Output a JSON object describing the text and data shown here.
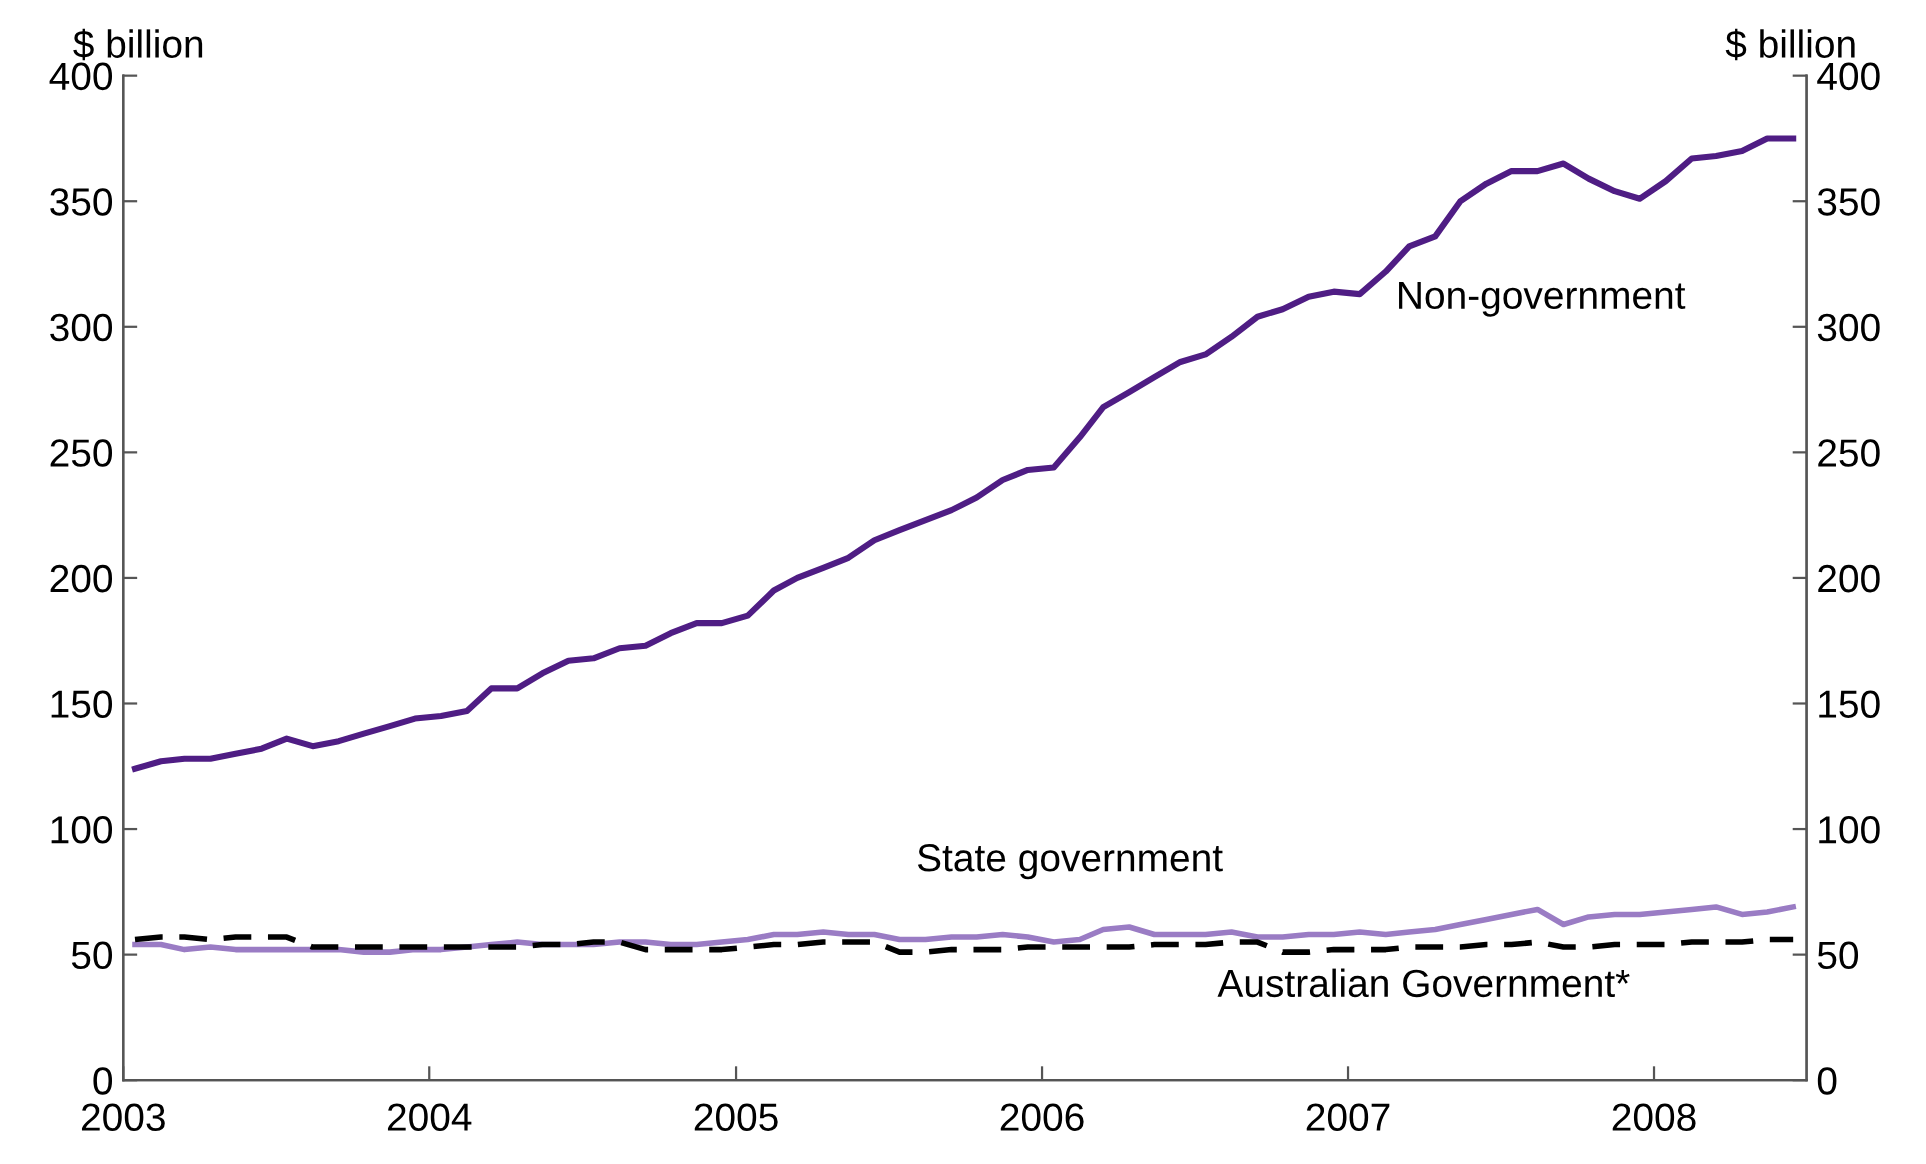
{
  "chart_data": {
    "type": "line",
    "ylabel": "$ billion",
    "y2label": "$ billion",
    "xlim": [
      "2003-01-01",
      "2008-07-01"
    ],
    "xticks": [
      "2003",
      "2004",
      "2005",
      "2006",
      "2007",
      "2008"
    ],
    "x": [
      "2003-01-15",
      "2003-02-15",
      "2003-03-15",
      "2003-04-15",
      "2003-05-15",
      "2003-06-15",
      "2003-07-15",
      "2003-08-15",
      "2003-09-15",
      "2003-10-15",
      "2003-11-15",
      "2003-12-15",
      "2004-01-15",
      "2004-02-15",
      "2004-03-15",
      "2004-04-15",
      "2004-05-15",
      "2004-06-15",
      "2004-07-15",
      "2004-08-15",
      "2004-09-15",
      "2004-10-15",
      "2004-11-15",
      "2004-12-15",
      "2005-01-15",
      "2005-02-15",
      "2005-03-15",
      "2005-04-15",
      "2005-05-15",
      "2005-06-15",
      "2005-07-15",
      "2005-08-15",
      "2005-09-15",
      "2005-10-15",
      "2005-11-15",
      "2005-12-15",
      "2006-01-15",
      "2006-02-15",
      "2006-03-15",
      "2006-04-15",
      "2006-05-15",
      "2006-06-15",
      "2006-07-15",
      "2006-08-15",
      "2006-09-15",
      "2006-10-15",
      "2006-11-15",
      "2006-12-15",
      "2007-01-15",
      "2007-02-15",
      "2007-03-15",
      "2007-04-15",
      "2007-05-15",
      "2007-06-15",
      "2007-07-15",
      "2007-08-15",
      "2007-09-15",
      "2007-10-15",
      "2007-11-15",
      "2007-12-15",
      "2008-01-15",
      "2008-02-15",
      "2008-03-15",
      "2008-04-15",
      "2008-05-15",
      "2008-06-15"
    ],
    "ylim": [
      0,
      400
    ],
    "yticks": [
      0,
      50,
      100,
      150,
      200,
      250,
      300,
      350,
      400
    ],
    "y2lim": [
      0,
      400
    ],
    "y2ticks": [
      0,
      50,
      100,
      150,
      200,
      250,
      300,
      350,
      400
    ],
    "grid": false,
    "legend": false,
    "series": [
      {
        "name": "Non-government",
        "color": "#4f1d84",
        "line_style": "solid",
        "values": [
          124,
          127,
          128,
          128,
          130,
          132,
          136,
          133,
          135,
          138,
          141,
          144,
          145,
          147,
          156,
          156,
          162,
          167,
          168,
          172,
          173,
          178,
          182,
          182,
          185,
          195,
          200,
          204,
          208,
          215,
          219,
          223,
          227,
          232,
          239,
          243,
          244,
          256,
          268,
          274,
          280,
          286,
          289,
          296,
          304,
          307,
          312,
          314,
          313,
          322,
          332,
          336,
          350,
          357,
          362,
          362,
          365,
          359,
          354,
          351,
          358,
          367,
          368,
          370,
          375,
          375
        ]
      },
      {
        "name": "State government",
        "color": "#9a7cc4",
        "line_style": "solid",
        "values": [
          54,
          54,
          52,
          53,
          52,
          52,
          52,
          52,
          52,
          51,
          51,
          52,
          52,
          53,
          54,
          55,
          54,
          54,
          54,
          55,
          55,
          54,
          54,
          55,
          56,
          58,
          58,
          59,
          58,
          58,
          56,
          56,
          57,
          57,
          58,
          57,
          55,
          56,
          60,
          61,
          58,
          58,
          58,
          59,
          57,
          57,
          58,
          58,
          59,
          58,
          59,
          60,
          62,
          64,
          66,
          68,
          62,
          65,
          66,
          66,
          67,
          68,
          69,
          66,
          67,
          69
        ]
      },
      {
        "name": "Australian Government*",
        "color": "#000000",
        "line_style": "dashed",
        "values": [
          56,
          57,
          57,
          56,
          57,
          57,
          57,
          53,
          53,
          53,
          53,
          53,
          53,
          53,
          53,
          53,
          54,
          54,
          55,
          55,
          52,
          52,
          52,
          52,
          53,
          54,
          54,
          55,
          55,
          55,
          51,
          51,
          52,
          52,
          52,
          53,
          53,
          53,
          53,
          53,
          54,
          54,
          54,
          55,
          55,
          51,
          51,
          52,
          52,
          52,
          53,
          53,
          53,
          54,
          54,
          55,
          53,
          53,
          54,
          54,
          54,
          55,
          55,
          55,
          56,
          56
        ]
      }
    ]
  }
}
